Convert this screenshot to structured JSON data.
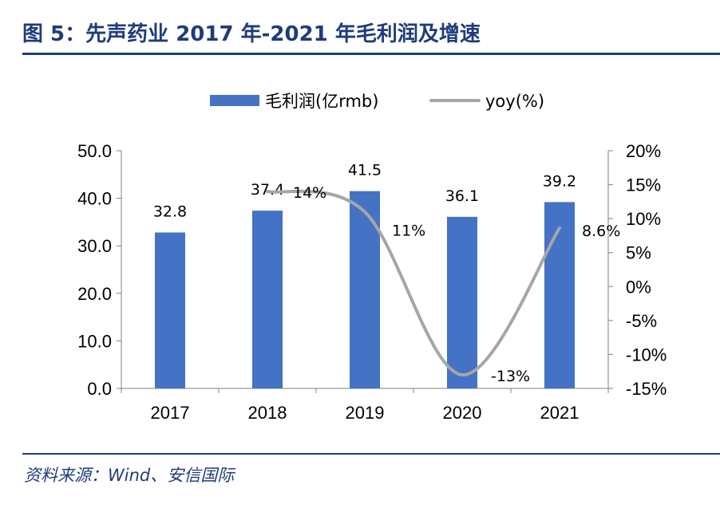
{
  "figure": {
    "title": "图 5：先声药业 2017 年-2021 年毛利润及增速",
    "source": "资料来源：Wind、安信国际"
  },
  "colors": {
    "bar": "#4472c4",
    "line": "#a6a6a6",
    "accent": "#1f3c7a"
  },
  "chart_data": {
    "type": "bar",
    "categories": [
      "2017",
      "2018",
      "2019",
      "2020",
      "2021"
    ],
    "series": [
      {
        "name": "毛利润(亿rmb)",
        "type": "bar",
        "axis": "left",
        "values": [
          32.8,
          37.4,
          41.5,
          36.1,
          39.2
        ],
        "labels": [
          "32.8",
          "37.4",
          "41.5",
          "36.1",
          "39.2"
        ]
      },
      {
        "name": "yoy(%)",
        "type": "line",
        "axis": "right",
        "smooth": true,
        "x": [
          "2018",
          "2019",
          "2020",
          "2021"
        ],
        "values": [
          14,
          11,
          -13,
          8.6
        ],
        "labels": [
          "14%",
          "11%",
          "-13%",
          "8.6%"
        ]
      }
    ],
    "ylim_left": [
      0,
      50
    ],
    "yticks_left": [
      "0.0",
      "10.0",
      "20.0",
      "30.0",
      "40.0",
      "50.0"
    ],
    "ylim_right": [
      -15,
      20
    ],
    "yticks_right": [
      "-15%",
      "-10%",
      "-5%",
      "0%",
      "5%",
      "10%",
      "15%",
      "20%"
    ],
    "grid": false,
    "legend_position": "top-center"
  }
}
